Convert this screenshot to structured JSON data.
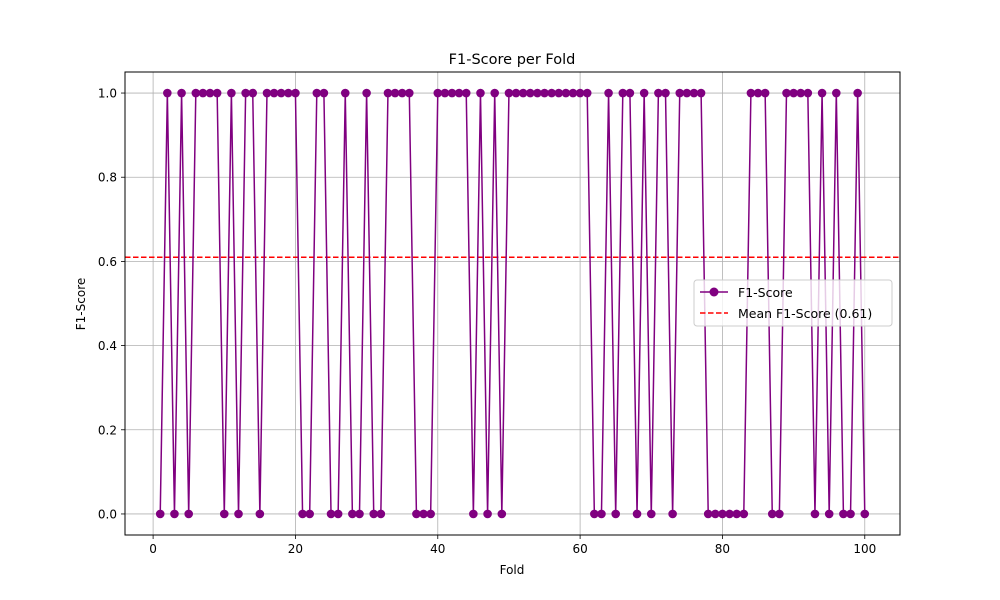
{
  "chart_data": {
    "type": "line",
    "title": "F1-Score per Fold",
    "xlabel": "Fold",
    "ylabel": "F1-Score",
    "xlim": [
      -3.95,
      104.95
    ],
    "ylim": [
      -0.05,
      1.05
    ],
    "xticks": [
      0,
      20,
      40,
      60,
      80,
      100
    ],
    "yticks": [
      0.0,
      0.2,
      0.4,
      0.6,
      0.8,
      1.0
    ],
    "xtick_labels": [
      "0",
      "20",
      "40",
      "60",
      "80",
      "100"
    ],
    "ytick_labels": [
      "0.0",
      "0.2",
      "0.4",
      "0.6",
      "0.8",
      "1.0"
    ],
    "grid": true,
    "legend_position": "center-right",
    "series": [
      {
        "name": "F1-Score",
        "color": "#800080",
        "marker": "circle",
        "x": [
          1,
          2,
          3,
          4,
          5,
          6,
          7,
          8,
          9,
          10,
          11,
          12,
          13,
          14,
          15,
          16,
          17,
          18,
          19,
          20,
          21,
          22,
          23,
          24,
          25,
          26,
          27,
          28,
          29,
          30,
          31,
          32,
          33,
          34,
          35,
          36,
          37,
          38,
          39,
          40,
          41,
          42,
          43,
          44,
          45,
          46,
          47,
          48,
          49,
          50,
          51,
          52,
          53,
          54,
          55,
          56,
          57,
          58,
          59,
          60,
          61,
          62,
          63,
          64,
          65,
          66,
          67,
          68,
          69,
          70,
          71,
          72,
          73,
          74,
          75,
          76,
          77,
          78,
          79,
          80,
          81,
          82,
          83,
          84,
          85,
          86,
          87,
          88,
          89,
          90,
          91,
          92,
          93,
          94,
          95,
          96,
          97,
          98,
          99,
          100
        ],
        "values": [
          0,
          1,
          0,
          1,
          0,
          1,
          1,
          1,
          1,
          0,
          1,
          0,
          1,
          1,
          0,
          1,
          1,
          1,
          1,
          1,
          0,
          0,
          1,
          1,
          0,
          0,
          1,
          0,
          0,
          1,
          0,
          0,
          1,
          1,
          1,
          1,
          0,
          0,
          0,
          1,
          1,
          1,
          1,
          1,
          0,
          1,
          0,
          1,
          0,
          1,
          1,
          1,
          1,
          1,
          1,
          1,
          1,
          1,
          1,
          1,
          1,
          0,
          0,
          1,
          0,
          1,
          1,
          0,
          1,
          0,
          1,
          1,
          0,
          1,
          1,
          1,
          1,
          0,
          0,
          0,
          0,
          0,
          0,
          1,
          1,
          1,
          0,
          0,
          1,
          1,
          1,
          1,
          0,
          1,
          0,
          1,
          0,
          0,
          1,
          0
        ]
      },
      {
        "name": "Mean F1-Score (0.61)",
        "color": "#ff0000",
        "style": "dashed",
        "hline": 0.61
      }
    ]
  }
}
